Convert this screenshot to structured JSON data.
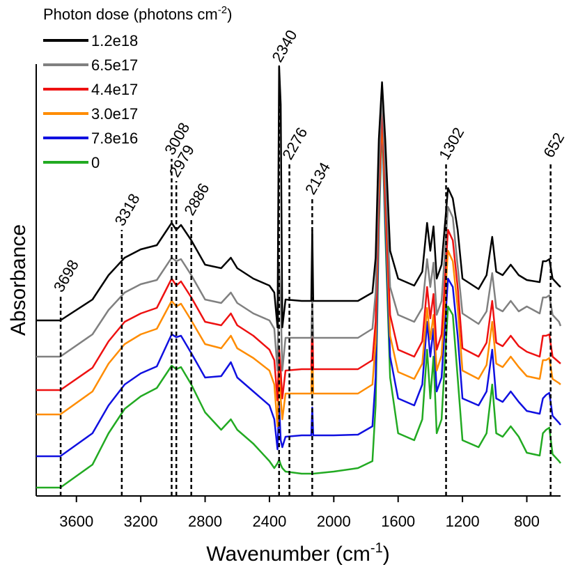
{
  "chart_data": {
    "type": "line",
    "legend_title": {
      "text": "Photon dose (photons cm",
      "sup": "-2",
      "end": ")"
    },
    "ylabel": "Absorbance",
    "xlabel": {
      "text": "Wavenumber (cm",
      "sup": "-1",
      "end": ")"
    },
    "xlim": [
      3850,
      590
    ],
    "xticks": [
      3600,
      3200,
      2800,
      2400,
      2000,
      1600,
      1200,
      800
    ],
    "ylim": [
      0,
      620
    ],
    "legend": "upper left",
    "x": [
      3850,
      3700,
      3500,
      3400,
      3300,
      3200,
      3100,
      3008,
      2979,
      2950,
      2886,
      2800,
      2700,
      2640,
      2600,
      2500,
      2400,
      2370,
      2350,
      2340,
      2330,
      2320,
      2300,
      2200,
      2140,
      2134,
      2128,
      2000,
      1850,
      1760,
      1740,
      1720,
      1700,
      1680,
      1650,
      1600,
      1500,
      1450,
      1420,
      1400,
      1380,
      1360,
      1330,
      1290,
      1260,
      1230,
      1200,
      1100,
      1050,
      1015,
      990,
      950,
      900,
      850,
      800,
      720,
      700,
      680,
      660,
      640,
      600,
      590
    ],
    "series": [
      {
        "name": "1.2e18",
        "color": "#000000",
        "values": [
          252,
          252,
          282,
          317,
          342,
          354,
          360,
          392,
          382,
          389,
          367,
          332,
          327,
          342,
          327,
          312,
          302,
          292,
          242,
          617,
          562,
          242,
          282,
          280,
          280,
          382,
          280,
          280,
          280,
          292,
          342,
          512,
          594,
          512,
          352,
          312,
          302,
          322,
          392,
          352,
          387,
          312,
          332,
          442,
          427,
          382,
          312,
          297,
          317,
          372,
          322,
          317,
          332,
          317,
          310,
          307,
          337,
          337,
          340,
          312,
          302,
          300
        ]
      },
      {
        "name": "6.5e17",
        "color": "#808080",
        "values": [
          200,
          200,
          232,
          267,
          292,
          304,
          310,
          342,
          337,
          340,
          317,
          282,
          277,
          292,
          277,
          262,
          252,
          240,
          180,
          330,
          280,
          180,
          227,
          227,
          227,
          282,
          227,
          227,
          227,
          240,
          292,
          470,
          580,
          470,
          300,
          260,
          250,
          270,
          340,
          300,
          335,
          260,
          280,
          415,
          400,
          330,
          262,
          247,
          265,
          320,
          270,
          265,
          280,
          265,
          272,
          262,
          285,
          285,
          288,
          260,
          250,
          244
        ]
      },
      {
        "name": "4.4e17",
        "color": "#ee1111",
        "values": [
          152,
          152,
          184,
          222,
          250,
          262,
          270,
          312,
          302,
          308,
          285,
          250,
          245,
          262,
          245,
          230,
          210,
          195,
          137,
          212,
          180,
          140,
          180,
          182,
          182,
          257,
          182,
          182,
          182,
          195,
          250,
          440,
          562,
          440,
          260,
          210,
          200,
          222,
          300,
          255,
          290,
          210,
          232,
          382,
          367,
          300,
          212,
          200,
          220,
          280,
          220,
          215,
          230,
          215,
          207,
          200,
          230,
          230,
          232,
          200,
          192,
          190
        ]
      },
      {
        "name": "3.0e17",
        "color": "#ff8c00",
        "values": [
          117,
          117,
          150,
          190,
          218,
          232,
          240,
          280,
          272,
          276,
          252,
          218,
          212,
          230,
          212,
          198,
          180,
          160,
          100,
          180,
          140,
          110,
          147,
          147,
          147,
          222,
          147,
          147,
          147,
          160,
          220,
          420,
          542,
          420,
          230,
          178,
          168,
          190,
          270,
          225,
          260,
          180,
          202,
          352,
          337,
          270,
          180,
          168,
          188,
          250,
          190,
          185,
          200,
          185,
          172,
          168,
          195,
          195,
          198,
          168,
          162,
          160
        ]
      },
      {
        "name": "7.8e16",
        "color": "#1010e0",
        "values": [
          57,
          57,
          90,
          130,
          160,
          176,
          186,
          232,
          228,
          230,
          205,
          170,
          172,
          192,
          170,
          150,
          130,
          110,
          67,
          132,
          80,
          70,
          85,
          87,
          87,
          127,
          87,
          87,
          88,
          100,
          170,
          400,
          540,
          400,
          200,
          140,
          130,
          160,
          250,
          200,
          240,
          150,
          170,
          312,
          300,
          230,
          140,
          130,
          150,
          210,
          140,
          135,
          150,
          135,
          122,
          118,
          140,
          145,
          148,
          115,
          105,
          102
        ]
      },
      {
        "name": "0",
        "color": "#22aa22",
        "values": [
          12,
          12,
          45,
          90,
          125,
          143,
          155,
          187,
          182,
          185,
          160,
          120,
          95,
          110,
          95,
          75,
          50,
          40,
          47,
          52,
          45,
          40,
          35,
          32,
          32,
          32,
          32,
          35,
          40,
          50,
          130,
          380,
          537,
          380,
          170,
          90,
          80,
          110,
          210,
          140,
          200,
          90,
          110,
          272,
          260,
          170,
          80,
          70,
          90,
          160,
          90,
          85,
          100,
          85,
          62,
          58,
          90,
          95,
          98,
          60,
          50,
          47
        ]
      }
    ],
    "annotations": [
      {
        "x": 3698,
        "y": 287
      },
      {
        "x": 3318,
        "y": 382
      },
      {
        "x": 3008,
        "y": 484
      },
      {
        "x": 2979,
        "y": 452
      },
      {
        "x": 2886,
        "y": 397
      },
      {
        "x": 2340,
        "y": 617
      },
      {
        "x": 2276,
        "y": 477
      },
      {
        "x": 2134,
        "y": 427
      },
      {
        "x": 1302,
        "y": 477
      },
      {
        "x": 652,
        "y": 480
      }
    ]
  }
}
